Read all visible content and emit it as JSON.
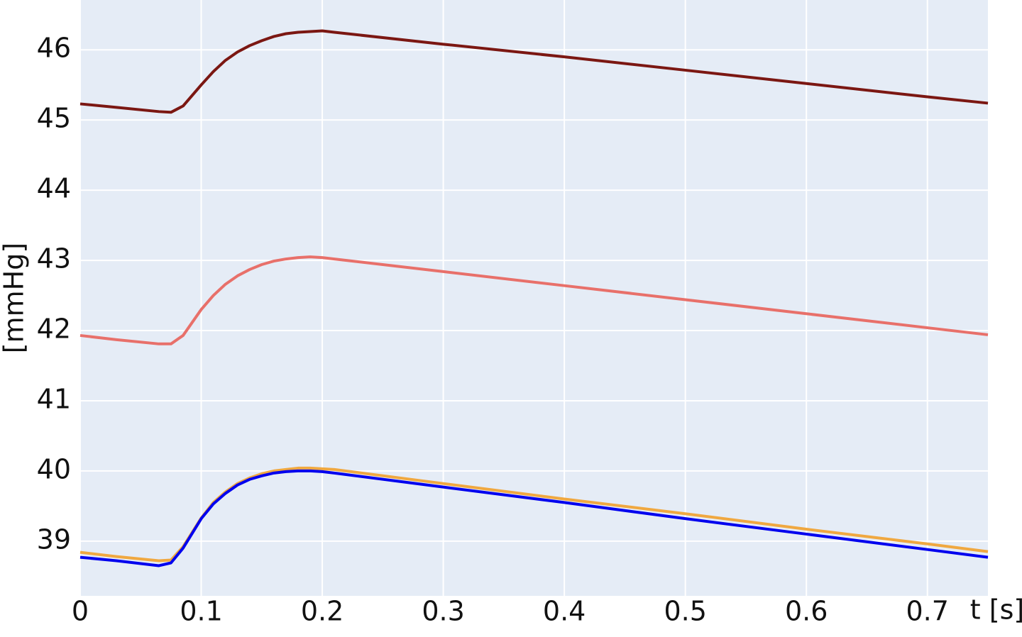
{
  "chart_data": {
    "type": "line",
    "x_label": "t [s]",
    "y_label": "[mmHg]",
    "x": [
      0,
      0.03,
      0.065,
      0.075,
      0.085,
      0.1,
      0.11,
      0.12,
      0.13,
      0.14,
      0.15,
      0.16,
      0.17,
      0.18,
      0.19,
      0.2,
      0.21,
      0.3,
      0.4,
      0.5,
      0.6,
      0.7,
      0.75
    ],
    "series": [
      {
        "color": "#7b1712",
        "values": [
          45.23,
          45.18,
          45.12,
          45.11,
          45.2,
          45.5,
          45.69,
          45.85,
          45.97,
          46.06,
          46.13,
          46.19,
          46.23,
          46.25,
          46.26,
          46.27,
          46.25,
          46.08,
          45.9,
          45.71,
          45.52,
          45.33,
          45.24
        ]
      },
      {
        "color": "#e8706a",
        "values": [
          41.93,
          41.87,
          41.81,
          41.81,
          41.93,
          42.3,
          42.5,
          42.66,
          42.78,
          42.87,
          42.94,
          42.99,
          43.02,
          43.04,
          43.05,
          43.04,
          43.02,
          42.84,
          42.64,
          42.44,
          42.24,
          42.04,
          41.94
        ]
      },
      {
        "color": "#f0a840",
        "values": [
          38.84,
          38.78,
          38.72,
          38.73,
          38.92,
          39.33,
          39.55,
          39.7,
          39.82,
          39.9,
          39.96,
          40.0,
          40.02,
          40.04,
          40.04,
          40.03,
          40.02,
          39.82,
          39.6,
          39.39,
          39.17,
          38.96,
          38.85
        ]
      },
      {
        "color": "#0000ee",
        "values": [
          38.77,
          38.72,
          38.65,
          38.69,
          38.9,
          39.32,
          39.53,
          39.68,
          39.8,
          39.88,
          39.93,
          39.97,
          39.99,
          40.0,
          40.0,
          39.99,
          39.97,
          39.77,
          39.55,
          39.32,
          39.1,
          38.88,
          38.77
        ]
      }
    ],
    "xlim": [
      0,
      0.75
    ],
    "ylim": [
      38.22,
      46.71
    ],
    "xticks": [
      0,
      0.1,
      0.2,
      0.3,
      0.4,
      0.5,
      0.6,
      0.7
    ],
    "yticks": [
      39,
      40,
      41,
      42,
      43,
      44,
      45,
      46
    ],
    "grid": true
  }
}
